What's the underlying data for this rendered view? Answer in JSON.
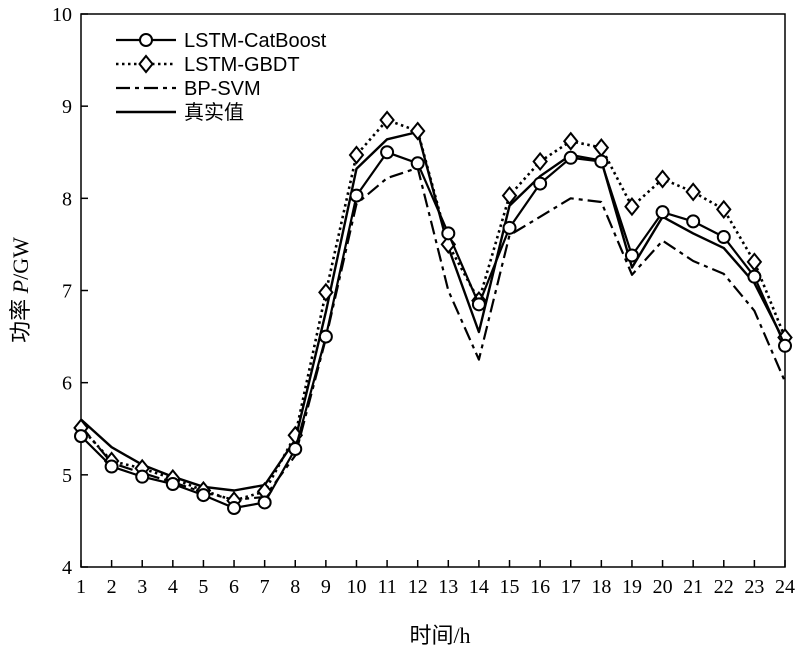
{
  "chart_data": {
    "type": "line",
    "title": "",
    "xlabel": "时间/h",
    "ylabel_prefix": "功率 ",
    "ylabel_var": "P",
    "ylabel_suffix": "/GW",
    "x": [
      1,
      2,
      3,
      4,
      5,
      6,
      7,
      8,
      9,
      10,
      11,
      12,
      13,
      14,
      15,
      16,
      17,
      18,
      19,
      20,
      21,
      22,
      23,
      24
    ],
    "xlim": [
      1,
      24
    ],
    "ylim": [
      4,
      10
    ],
    "yticks": [
      4,
      5,
      6,
      7,
      8,
      9,
      10
    ],
    "grid": false,
    "legend_position": "top-left",
    "series": [
      {
        "name": "LSTM-CatBoost",
        "style": "solid-circle",
        "values": [
          5.42,
          5.09,
          4.98,
          4.9,
          4.78,
          4.64,
          4.7,
          5.28,
          6.5,
          8.03,
          8.5,
          8.38,
          7.62,
          6.85,
          7.68,
          8.16,
          8.44,
          8.4,
          7.38,
          7.85,
          7.75,
          7.58,
          7.15,
          6.4
        ]
      },
      {
        "name": "LSTM-GBDT",
        "style": "dotted-diamond",
        "values": [
          5.51,
          5.15,
          5.07,
          4.96,
          4.83,
          4.72,
          4.82,
          5.43,
          6.98,
          8.47,
          8.85,
          8.73,
          7.5,
          6.89,
          8.03,
          8.4,
          8.62,
          8.55,
          7.91,
          8.21,
          8.07,
          7.88,
          7.31,
          6.49
        ]
      },
      {
        "name": "BP-SVM",
        "style": "dashdot",
        "values": [
          5.53,
          5.13,
          5.02,
          4.92,
          4.81,
          4.73,
          4.76,
          5.21,
          6.48,
          7.94,
          8.22,
          8.33,
          7.0,
          6.25,
          7.6,
          7.8,
          8.0,
          7.96,
          7.17,
          7.54,
          7.32,
          7.18,
          6.78,
          6.01
        ]
      },
      {
        "name": "真实值",
        "style": "solid",
        "values": [
          5.6,
          5.3,
          5.11,
          4.98,
          4.87,
          4.83,
          4.89,
          5.38,
          6.77,
          8.32,
          8.64,
          8.72,
          7.47,
          6.55,
          7.92,
          8.24,
          8.47,
          8.41,
          7.25,
          7.8,
          7.62,
          7.46,
          7.08,
          6.43
        ]
      }
    ]
  }
}
